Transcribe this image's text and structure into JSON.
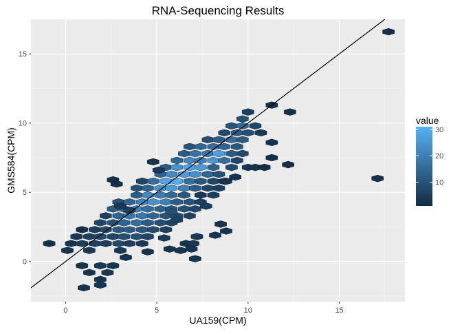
{
  "chart_data": {
    "type": "hexbin",
    "title": "RNA-Sequencing Results",
    "xlabel": "UA159(CPM)",
    "ylabel": "GMS584(CPM)",
    "xlim": [
      -1.9,
      18.6
    ],
    "ylim": [
      -2.9,
      17.5
    ],
    "x_ticks": [
      0,
      5,
      10,
      15
    ],
    "y_ticks": [
      0,
      5,
      10,
      15
    ],
    "grid": true,
    "legend": {
      "title": "value",
      "position": "right",
      "ticks": [
        10,
        20,
        30
      ],
      "range": [
        1,
        31
      ],
      "color_low": "#132b43",
      "color_high": "#56b1f7"
    },
    "reference_line": {
      "x": [
        -1.9,
        17.5
      ],
      "y": [
        -1.9,
        17.5
      ]
    },
    "hexbin_size": [
      0.65,
      0.5
    ],
    "hexbins": [
      [
        -0.9,
        1.3,
        2
      ],
      [
        0.1,
        0.8,
        3
      ],
      [
        0.3,
        1.3,
        3
      ],
      [
        0.6,
        1.8,
        4
      ],
      [
        0.9,
        2.3,
        2
      ],
      [
        0.9,
        1.3,
        5
      ],
      [
        1.3,
        1.8,
        6
      ],
      [
        1.3,
        0.8,
        4
      ],
      [
        1.6,
        2.3,
        5
      ],
      [
        1.6,
        1.3,
        6
      ],
      [
        1.9,
        2.8,
        7
      ],
      [
        1.9,
        1.8,
        8
      ],
      [
        2.2,
        3.3,
        6
      ],
      [
        2.2,
        2.3,
        8
      ],
      [
        2.2,
        1.3,
        5
      ],
      [
        2.6,
        3.8,
        12
      ],
      [
        2.6,
        2.8,
        10
      ],
      [
        2.6,
        1.8,
        7
      ],
      [
        2.9,
        4.3,
        9
      ],
      [
        2.9,
        3.3,
        14
      ],
      [
        2.9,
        2.3,
        11
      ],
      [
        2.9,
        1.3,
        8
      ],
      [
        3.2,
        3.8,
        16
      ],
      [
        3.2,
        2.8,
        14
      ],
      [
        3.2,
        1.8,
        9
      ],
      [
        3.5,
        4.3,
        14
      ],
      [
        3.5,
        3.3,
        18
      ],
      [
        3.5,
        2.3,
        12
      ],
      [
        3.5,
        1.3,
        5
      ],
      [
        3.9,
        5.3,
        9
      ],
      [
        3.9,
        4.8,
        12
      ],
      [
        3.9,
        3.8,
        20
      ],
      [
        3.9,
        2.8,
        16
      ],
      [
        3.9,
        1.8,
        9
      ],
      [
        4.2,
        5.8,
        7
      ],
      [
        4.2,
        4.3,
        21
      ],
      [
        4.2,
        3.3,
        18
      ],
      [
        4.2,
        2.3,
        11
      ],
      [
        4.5,
        5.3,
        13
      ],
      [
        4.5,
        4.8,
        22
      ],
      [
        4.5,
        3.8,
        16
      ],
      [
        4.5,
        2.8,
        12
      ],
      [
        4.5,
        1.8,
        7
      ],
      [
        4.8,
        5.8,
        16
      ],
      [
        4.8,
        4.3,
        24
      ],
      [
        4.8,
        3.3,
        14
      ],
      [
        4.8,
        2.3,
        8
      ],
      [
        5.2,
        6.3,
        14
      ],
      [
        5.2,
        5.3,
        24
      ],
      [
        5.2,
        4.8,
        19
      ],
      [
        5.2,
        3.8,
        13
      ],
      [
        5.2,
        2.8,
        9
      ],
      [
        5.5,
        6.8,
        12
      ],
      [
        5.5,
        5.8,
        28
      ],
      [
        5.5,
        4.3,
        20
      ],
      [
        5.5,
        3.3,
        10
      ],
      [
        5.5,
        2.3,
        6
      ],
      [
        5.8,
        6.3,
        22
      ],
      [
        5.8,
        5.3,
        26
      ],
      [
        5.8,
        4.8,
        15
      ],
      [
        5.8,
        3.8,
        11
      ],
      [
        5.8,
        2.8,
        7
      ],
      [
        6.1,
        7.3,
        14
      ],
      [
        6.1,
        6.8,
        24
      ],
      [
        6.1,
        5.8,
        30
      ],
      [
        6.1,
        4.3,
        12
      ],
      [
        6.1,
        3.3,
        8
      ],
      [
        6.5,
        7.8,
        12
      ],
      [
        6.5,
        6.3,
        26
      ],
      [
        6.5,
        5.3,
        20
      ],
      [
        6.5,
        4.8,
        11
      ],
      [
        6.5,
        3.8,
        9
      ],
      [
        6.8,
        8.3,
        10
      ],
      [
        6.8,
        7.3,
        22
      ],
      [
        6.8,
        6.8,
        28
      ],
      [
        6.8,
        5.8,
        16
      ],
      [
        6.8,
        4.3,
        10
      ],
      [
        6.8,
        3.3,
        6
      ],
      [
        7.1,
        7.8,
        17
      ],
      [
        7.1,
        6.3,
        24
      ],
      [
        7.1,
        5.3,
        12
      ],
      [
        7.1,
        3.8,
        7
      ],
      [
        7.4,
        8.3,
        14
      ],
      [
        7.4,
        7.3,
        20
      ],
      [
        7.4,
        6.8,
        26
      ],
      [
        7.4,
        5.8,
        11
      ],
      [
        7.4,
        4.3,
        6
      ],
      [
        7.8,
        8.8,
        9
      ],
      [
        7.8,
        7.8,
        18
      ],
      [
        7.8,
        6.3,
        14
      ],
      [
        7.8,
        5.3,
        7
      ],
      [
        8.1,
        8.3,
        16
      ],
      [
        8.1,
        7.3,
        25
      ],
      [
        8.1,
        6.8,
        13
      ],
      [
        8.1,
        5.8,
        7
      ],
      [
        8.1,
        4.8,
        5
      ],
      [
        8.4,
        8.8,
        12
      ],
      [
        8.4,
        7.8,
        27
      ],
      [
        8.4,
        6.3,
        9
      ],
      [
        8.4,
        5.3,
        5
      ],
      [
        8.7,
        9.3,
        8
      ],
      [
        8.7,
        8.3,
        14
      ],
      [
        8.7,
        7.3,
        16
      ],
      [
        8.7,
        5.8,
        4
      ],
      [
        9.1,
        9.8,
        10
      ],
      [
        9.1,
        8.8,
        16
      ],
      [
        9.1,
        7.8,
        12
      ],
      [
        9.1,
        6.8,
        8
      ],
      [
        9.4,
        9.3,
        12
      ],
      [
        9.4,
        8.3,
        11
      ],
      [
        9.4,
        7.3,
        7
      ],
      [
        9.7,
        10.3,
        9
      ],
      [
        9.7,
        9.8,
        15
      ],
      [
        9.7,
        8.8,
        12
      ],
      [
        9.7,
        7.8,
        8
      ],
      [
        10.0,
        10.8,
        5
      ],
      [
        10.0,
        9.3,
        9
      ],
      [
        10.0,
        6.8,
        4
      ],
      [
        10.4,
        9.8,
        7
      ],
      [
        10.4,
        6.8,
        3
      ],
      [
        10.7,
        9.3,
        4
      ],
      [
        10.9,
        6.8,
        2
      ],
      [
        11.3,
        11.3,
        2
      ],
      [
        11.3,
        8.6,
        3
      ],
      [
        11.3,
        7.5,
        2
      ],
      [
        12.3,
        10.8,
        2
      ],
      [
        12.2,
        7.0,
        2
      ],
      [
        3.0,
        4.0,
        4
      ],
      [
        3.5,
        3.7,
        5
      ],
      [
        2.6,
        5.9,
        2
      ],
      [
        2.8,
        5.6,
        2
      ],
      [
        4.8,
        7.2,
        3
      ],
      [
        5.1,
        6.6,
        4
      ],
      [
        5.8,
        3.6,
        9
      ],
      [
        6.1,
        3.0,
        6
      ],
      [
        7.4,
        4.8,
        4
      ],
      [
        7.7,
        4.0,
        5
      ],
      [
        8.5,
        2.7,
        3
      ],
      [
        8.8,
        2.2,
        3
      ],
      [
        8.2,
        1.9,
        3
      ],
      [
        9.3,
        6.1,
        3
      ],
      [
        8.8,
        5.8,
        3
      ],
      [
        5.7,
        0.9,
        3
      ],
      [
        6.3,
        0.8,
        3
      ],
      [
        6.6,
        1.3,
        3
      ],
      [
        7.0,
        1.3,
        4
      ],
      [
        7.2,
        1.8,
        4
      ],
      [
        6.9,
        0.9,
        3
      ],
      [
        7.1,
        0.2,
        3
      ],
      [
        5.4,
        1.7,
        4
      ],
      [
        4.5,
        0.7,
        3
      ],
      [
        4.2,
        1.3,
        4
      ],
      [
        3.3,
        0.3,
        3
      ],
      [
        3.0,
        0.8,
        4
      ],
      [
        2.6,
        -0.3,
        3
      ],
      [
        2.3,
        -0.8,
        4
      ],
      [
        1.9,
        -0.3,
        4
      ],
      [
        1.9,
        -1.3,
        3
      ],
      [
        1.3,
        -0.8,
        3
      ],
      [
        0.9,
        -0.3,
        3
      ],
      [
        1.0,
        -1.9,
        3
      ],
      [
        1.9,
        -1.7,
        3
      ],
      [
        17.1,
        6.0,
        2
      ],
      [
        17.7,
        16.6,
        2
      ]
    ]
  }
}
